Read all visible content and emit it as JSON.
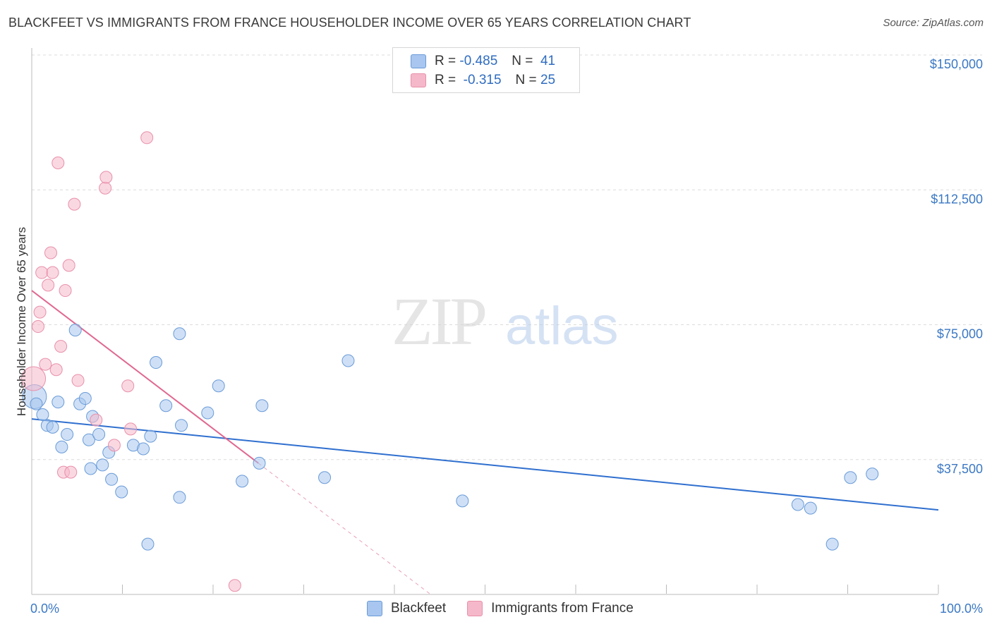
{
  "header": {
    "title": "BLACKFEET VS IMMIGRANTS FROM FRANCE HOUSEHOLDER INCOME OVER 65 YEARS CORRELATION CHART",
    "source": "Source: ZipAtlas.com"
  },
  "watermark": {
    "zip": "ZIP",
    "atlas": "atlas"
  },
  "legend": {
    "rows": [
      {
        "r_label": "R =",
        "r_value": "-0.485",
        "n_label": "N =",
        "n_value": "41",
        "color": "#a8c6ef"
      },
      {
        "r_label": "R =",
        "r_value": "-0.315",
        "n_label": "N =",
        "n_value": "25",
        "color": "#f5b8ca"
      }
    ]
  },
  "bottom_legend": [
    "Blackfeet",
    "Immigrants from France"
  ],
  "chart_data": {
    "type": "scatter",
    "title": "BLACKFEET VS IMMIGRANTS FROM FRANCE HOUSEHOLDER INCOME OVER 65 YEARS CORRELATION CHART",
    "xlabel": "",
    "ylabel": "Householder Income Over 65 years",
    "xlim": [
      0,
      100
    ],
    "ylim": [
      0,
      150000
    ],
    "x_tick_labels": [
      "0.0%",
      "100.0%"
    ],
    "y_ticks": [
      37500,
      75000,
      112500,
      150000
    ],
    "y_tick_labels": [
      "$37,500",
      "$75,000",
      "$112,500",
      "$150,000"
    ],
    "grid": true,
    "series": [
      {
        "name": "Blackfeet",
        "color": "#a8c6ef",
        "stroke": "#6a9bd8",
        "points": [
          [
            0.3,
            55000
          ],
          [
            0.5,
            53000
          ],
          [
            1.2,
            50000
          ],
          [
            1.7,
            47000
          ],
          [
            2.3,
            46500
          ],
          [
            2.9,
            53500
          ],
          [
            3.3,
            41000
          ],
          [
            3.9,
            44500
          ],
          [
            5.3,
            53000
          ],
          [
            4.8,
            73500
          ],
          [
            5.9,
            54500
          ],
          [
            6.3,
            43000
          ],
          [
            6.5,
            35000
          ],
          [
            6.7,
            49500
          ],
          [
            7.4,
            44500
          ],
          [
            7.8,
            36000
          ],
          [
            8.5,
            39500
          ],
          [
            8.8,
            32000
          ],
          [
            9.9,
            28500
          ],
          [
            11.2,
            41500
          ],
          [
            12.3,
            40500
          ],
          [
            12.8,
            14000
          ],
          [
            13.1,
            44000
          ],
          [
            13.7,
            64500
          ],
          [
            14.8,
            52500
          ],
          [
            16.3,
            27000
          ],
          [
            16.5,
            47000
          ],
          [
            16.3,
            72500
          ],
          [
            19.4,
            50500
          ],
          [
            20.6,
            58000
          ],
          [
            23.2,
            31500
          ],
          [
            25.1,
            36500
          ],
          [
            25.4,
            52500
          ],
          [
            32.3,
            32500
          ],
          [
            34.9,
            65000
          ],
          [
            47.5,
            26000
          ],
          [
            84.5,
            25000
          ],
          [
            85.9,
            24000
          ],
          [
            88.3,
            14000
          ],
          [
            90.3,
            32500
          ],
          [
            92.7,
            33500
          ]
        ],
        "trend": {
          "x": [
            0,
            100
          ],
          "y": [
            48800,
            23500
          ],
          "style": "solid"
        }
      },
      {
        "name": "Immigrants from France",
        "color": "#f5b8ca",
        "stroke": "#e890aa",
        "points": [
          [
            0.2,
            60000
          ],
          [
            0.7,
            74500
          ],
          [
            0.9,
            78500
          ],
          [
            1.1,
            89500
          ],
          [
            1.5,
            64000
          ],
          [
            1.8,
            86000
          ],
          [
            2.1,
            95000
          ],
          [
            2.3,
            89500
          ],
          [
            2.7,
            62500
          ],
          [
            2.9,
            120000
          ],
          [
            3.2,
            69000
          ],
          [
            3.5,
            34000
          ],
          [
            3.7,
            84500
          ],
          [
            4.1,
            91500
          ],
          [
            4.3,
            34000
          ],
          [
            4.7,
            108500
          ],
          [
            5.1,
            59500
          ],
          [
            7.1,
            48500
          ],
          [
            8.1,
            113000
          ],
          [
            8.2,
            116000
          ],
          [
            9.1,
            41500
          ],
          [
            10.6,
            58000
          ],
          [
            10.9,
            46000
          ],
          [
            12.7,
            127000
          ],
          [
            22.4,
            2500
          ]
        ],
        "trend": {
          "x": [
            0,
            25
          ],
          "y": [
            84500,
            36500
          ],
          "style": "solid"
        },
        "trend_extension": {
          "x": [
            25,
            44
          ],
          "y": [
            36500,
            0
          ],
          "style": "dashed"
        }
      }
    ]
  }
}
